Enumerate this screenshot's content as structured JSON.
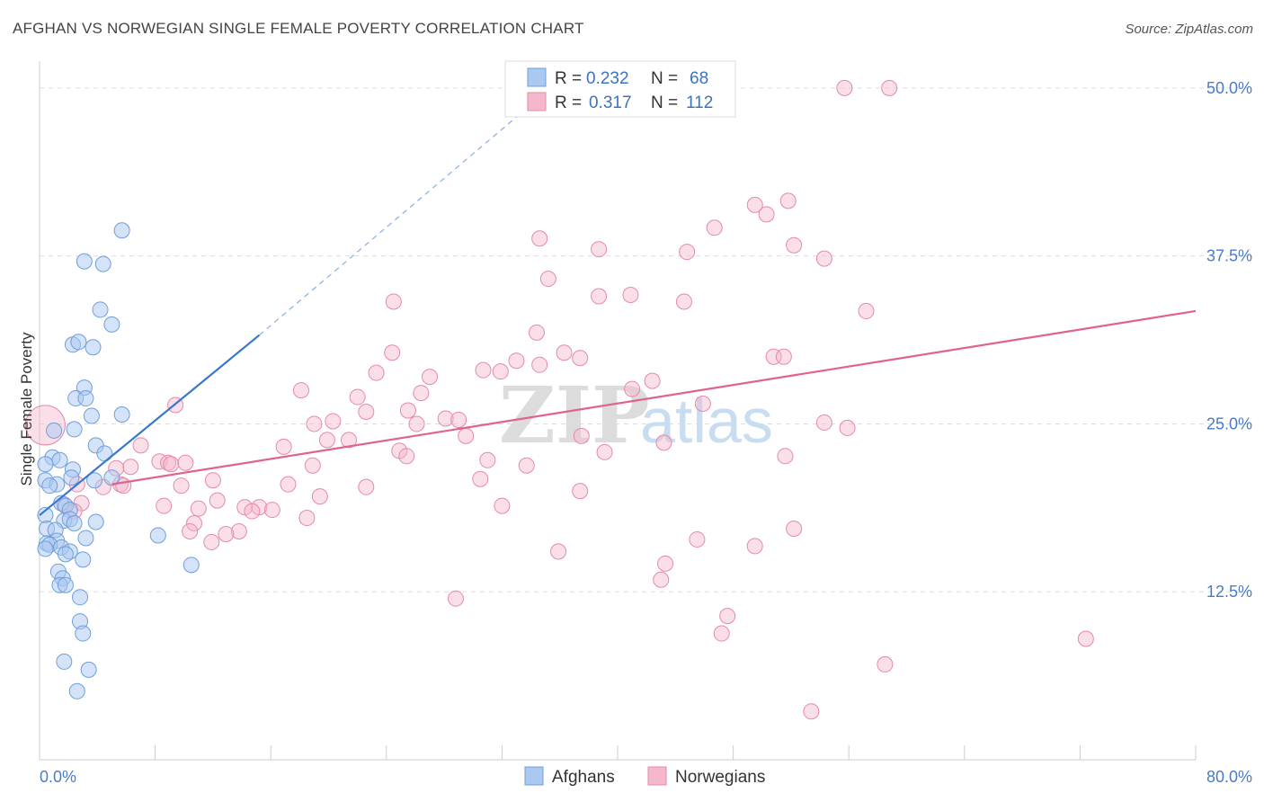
{
  "header": {
    "title": "AFGHAN VS NORWEGIAN SINGLE FEMALE POVERTY CORRELATION CHART",
    "source": "Source: ZipAtlas.com"
  },
  "watermark": {
    "zip": "ZIP",
    "atlas": "atlas"
  },
  "legend_top": {
    "rows": [
      {
        "r_label": "R = ",
        "r_value": "0.232",
        "n_label": "N = ",
        "n_value": "68",
        "color": "#aac8f0"
      },
      {
        "r_label": "R = ",
        "r_value": "0.317",
        "n_label": "N = ",
        "n_value": "112",
        "color": "#f5b8cb"
      }
    ]
  },
  "legend_bottom": [
    {
      "label": "Afghans",
      "color": "#aac8f0"
    },
    {
      "label": "Norwegians",
      "color": "#f5b8cb"
    }
  ],
  "chart_data": {
    "type": "scatter",
    "title": "AFGHAN VS NORWEGIAN SINGLE FEMALE POVERTY CORRELATION CHART",
    "xlabel": "",
    "ylabel": "Single Female Poverty",
    "xlim": [
      0,
      80
    ],
    "ylim": [
      0,
      52
    ],
    "x_tick_labels": [
      "0.0%",
      "80.0%"
    ],
    "y_ticks": [
      12.5,
      25.0,
      37.5,
      50.0
    ],
    "y_tick_labels": [
      "12.5%",
      "25.0%",
      "37.5%",
      "50.0%"
    ],
    "grid": true,
    "colors": {
      "afghans": "#3a78d0",
      "norwegians": "#e0628e",
      "afghans_fill": "#aac8f0",
      "norwegians_fill": "#f5b8cb"
    },
    "series": [
      {
        "name": "Afghans",
        "R": 0.232,
        "N": 68,
        "trend": {
          "x": [
            0,
            15.2
          ],
          "y": [
            18.2,
            31.6
          ],
          "dashed_to": [
            33.5,
            48.3
          ]
        },
        "points": [
          [
            5.7,
            39.4
          ],
          [
            3.1,
            37.1
          ],
          [
            4.4,
            36.9
          ],
          [
            4.2,
            33.5
          ],
          [
            5.0,
            32.4
          ],
          [
            2.3,
            30.9
          ],
          [
            2.7,
            31.1
          ],
          [
            3.7,
            30.7
          ],
          [
            3.1,
            27.7
          ],
          [
            2.5,
            26.9
          ],
          [
            3.2,
            26.9
          ],
          [
            3.6,
            25.6
          ],
          [
            5.7,
            25.7
          ],
          [
            2.4,
            24.6
          ],
          [
            1.0,
            24.5
          ],
          [
            3.9,
            23.4
          ],
          [
            4.5,
            22.8
          ],
          [
            0.9,
            22.5
          ],
          [
            1.4,
            22.3
          ],
          [
            0.4,
            22.0
          ],
          [
            2.3,
            21.6
          ],
          [
            2.2,
            21.0
          ],
          [
            5.0,
            21.0
          ],
          [
            3.8,
            20.8
          ],
          [
            0.4,
            20.8
          ],
          [
            1.2,
            20.5
          ],
          [
            0.7,
            20.4
          ],
          [
            1.5,
            19.1
          ],
          [
            1.8,
            18.9
          ],
          [
            2.1,
            18.6
          ],
          [
            0.4,
            18.2
          ],
          [
            1.7,
            17.8
          ],
          [
            2.1,
            17.9
          ],
          [
            3.9,
            17.7
          ],
          [
            2.4,
            17.6
          ],
          [
            0.5,
            17.2
          ],
          [
            1.1,
            17.1
          ],
          [
            8.2,
            16.7
          ],
          [
            1.2,
            16.3
          ],
          [
            0.5,
            16.1
          ],
          [
            0.7,
            16.0
          ],
          [
            1.5,
            15.8
          ],
          [
            2.1,
            15.5
          ],
          [
            0.4,
            15.7
          ],
          [
            1.8,
            15.3
          ],
          [
            3.2,
            16.5
          ],
          [
            3.0,
            14.9
          ],
          [
            10.5,
            14.5
          ],
          [
            1.3,
            14.0
          ],
          [
            1.6,
            13.5
          ],
          [
            1.4,
            13.0
          ],
          [
            1.8,
            13.0
          ],
          [
            2.8,
            12.1
          ],
          [
            2.8,
            10.3
          ],
          [
            3.0,
            9.4
          ],
          [
            1.7,
            7.3
          ],
          [
            3.4,
            6.7
          ],
          [
            2.6,
            5.1
          ]
        ]
      },
      {
        "name": "Norwegians",
        "R": 0.317,
        "N": 112,
        "trend": {
          "x": [
            5.0,
            80.0
          ],
          "y": [
            20.5,
            33.4
          ]
        },
        "points": [
          [
            55.7,
            50.0
          ],
          [
            58.8,
            50.0
          ],
          [
            47.2,
            48.7
          ],
          [
            49.5,
            41.3
          ],
          [
            50.3,
            40.6
          ],
          [
            51.8,
            41.6
          ],
          [
            46.7,
            39.6
          ],
          [
            34.6,
            38.8
          ],
          [
            38.7,
            38.0
          ],
          [
            44.8,
            37.8
          ],
          [
            52.2,
            38.3
          ],
          [
            54.3,
            37.3
          ],
          [
            35.2,
            35.8
          ],
          [
            38.7,
            34.5
          ],
          [
            40.9,
            34.6
          ],
          [
            44.6,
            34.1
          ],
          [
            24.5,
            34.1
          ],
          [
            57.2,
            33.4
          ],
          [
            34.4,
            31.8
          ],
          [
            24.4,
            30.3
          ],
          [
            36.3,
            30.3
          ],
          [
            37.4,
            29.9
          ],
          [
            50.8,
            30.0
          ],
          [
            51.5,
            30.0
          ],
          [
            33.0,
            29.7
          ],
          [
            34.6,
            29.4
          ],
          [
            31.9,
            28.9
          ],
          [
            23.3,
            28.8
          ],
          [
            30.7,
            29.0
          ],
          [
            27.0,
            28.5
          ],
          [
            41.0,
            27.6
          ],
          [
            18.1,
            27.5
          ],
          [
            26.4,
            27.3
          ],
          [
            22.0,
            27.0
          ],
          [
            42.4,
            28.2
          ],
          [
            45.9,
            26.5
          ],
          [
            9.4,
            26.4
          ],
          [
            25.5,
            26.0
          ],
          [
            22.6,
            25.9
          ],
          [
            28.1,
            25.4
          ],
          [
            29.0,
            25.3
          ],
          [
            20.3,
            25.2
          ],
          [
            19.0,
            25.0
          ],
          [
            26.1,
            25.0
          ],
          [
            37.5,
            24.1
          ],
          [
            29.5,
            24.1
          ],
          [
            54.3,
            25.1
          ],
          [
            55.9,
            24.7
          ],
          [
            19.9,
            23.8
          ],
          [
            21.4,
            23.8
          ],
          [
            43.2,
            23.6
          ],
          [
            16.9,
            23.3
          ],
          [
            7.0,
            23.4
          ],
          [
            24.9,
            23.0
          ],
          [
            25.4,
            22.6
          ],
          [
            39.1,
            22.9
          ],
          [
            51.6,
            22.6
          ],
          [
            8.3,
            22.2
          ],
          [
            8.9,
            22.1
          ],
          [
            9.1,
            22.0
          ],
          [
            10.1,
            22.1
          ],
          [
            6.3,
            21.8
          ],
          [
            18.9,
            21.9
          ],
          [
            5.3,
            21.7
          ],
          [
            31.0,
            22.3
          ],
          [
            33.7,
            21.9
          ],
          [
            12.0,
            20.8
          ],
          [
            30.5,
            20.9
          ],
          [
            5.6,
            20.5
          ],
          [
            4.4,
            20.3
          ],
          [
            5.8,
            20.4
          ],
          [
            2.6,
            20.5
          ],
          [
            9.8,
            20.4
          ],
          [
            17.2,
            20.5
          ],
          [
            22.6,
            20.3
          ],
          [
            37.4,
            20.0
          ],
          [
            19.4,
            19.6
          ],
          [
            2.9,
            19.1
          ],
          [
            1.7,
            19.0
          ],
          [
            12.3,
            19.3
          ],
          [
            8.6,
            18.9
          ],
          [
            11.0,
            18.7
          ],
          [
            14.2,
            18.8
          ],
          [
            15.2,
            18.8
          ],
          [
            14.7,
            18.5
          ],
          [
            16.1,
            18.6
          ],
          [
            32.0,
            18.9
          ],
          [
            18.5,
            18.0
          ],
          [
            2.4,
            18.5
          ],
          [
            10.7,
            17.6
          ],
          [
            13.8,
            17.0
          ],
          [
            10.4,
            17.0
          ],
          [
            12.9,
            16.8
          ],
          [
            11.9,
            16.2
          ],
          [
            45.5,
            16.4
          ],
          [
            52.2,
            17.2
          ],
          [
            49.5,
            15.9
          ],
          [
            35.9,
            15.5
          ],
          [
            43.3,
            14.6
          ],
          [
            43.0,
            13.4
          ],
          [
            28.8,
            12.0
          ],
          [
            47.6,
            10.7
          ],
          [
            47.2,
            9.4
          ],
          [
            72.4,
            9.0
          ],
          [
            58.5,
            7.1
          ],
          [
            53.4,
            3.6
          ]
        ]
      }
    ]
  }
}
